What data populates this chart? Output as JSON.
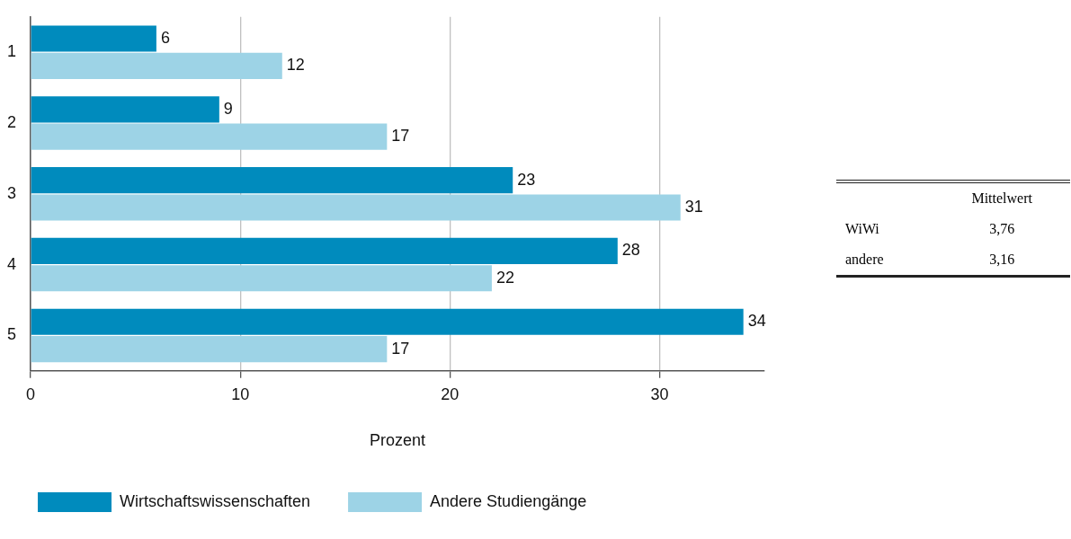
{
  "chart_data": [
    {
      "type": "bar",
      "orientation": "horizontal",
      "categories": [
        "1",
        "2",
        "3",
        "4",
        "5"
      ],
      "xlabel": "Prozent",
      "xlim": [
        0,
        35
      ],
      "xticks": [
        0,
        10,
        20,
        30
      ],
      "grid": "x",
      "legend": "bottom",
      "data_labels": true,
      "series": [
        {
          "name": "Wirtschaftswissenschaften",
          "color": "#008bbd",
          "values": [
            6,
            9,
            23,
            28,
            34
          ]
        },
        {
          "name": "Andere Studiengänge",
          "color": "#9dd3e6",
          "values": [
            12,
            17,
            31,
            22,
            17
          ]
        }
      ]
    },
    {
      "type": "other",
      "annotations": [
        "Mittelwert"
      ],
      "categories": [
        "WiWi",
        "andere"
      ],
      "value_labels": [
        "3,76",
        "3,16"
      ]
    }
  ]
}
